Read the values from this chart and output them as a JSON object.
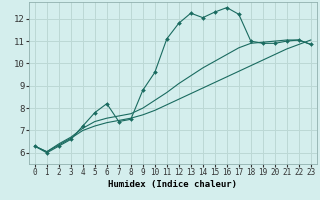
{
  "xlabel": "Humidex (Indice chaleur)",
  "bg_color": "#d4eeed",
  "grid_color": "#bcd8d5",
  "line_color": "#1a6b60",
  "xlim": [
    -0.5,
    23.5
  ],
  "ylim": [
    5.5,
    12.75
  ],
  "xticks": [
    0,
    1,
    2,
    3,
    4,
    5,
    6,
    7,
    8,
    9,
    10,
    11,
    12,
    13,
    14,
    15,
    16,
    17,
    18,
    19,
    20,
    21,
    22,
    23
  ],
  "yticks": [
    6,
    7,
    8,
    9,
    10,
    11,
    12
  ],
  "series1_x": [
    0,
    1,
    2,
    3,
    4,
    5,
    6,
    7,
    8,
    9,
    10,
    11,
    12,
    13,
    14,
    15,
    16,
    17,
    18,
    19,
    20,
    21,
    22,
    23
  ],
  "series1_y": [
    6.3,
    6.0,
    6.3,
    6.6,
    7.2,
    7.8,
    8.2,
    7.4,
    7.5,
    8.8,
    9.6,
    11.1,
    11.8,
    12.25,
    12.05,
    12.3,
    12.5,
    12.2,
    11.0,
    10.9,
    10.9,
    11.0,
    11.05,
    10.85
  ],
  "series2_x": [
    0,
    1,
    2,
    3,
    4,
    5,
    6,
    7,
    8,
    9,
    10,
    11,
    12,
    13,
    14,
    15,
    16,
    17,
    18,
    19,
    20,
    21,
    22,
    23
  ],
  "series2_y": [
    6.3,
    6.05,
    6.35,
    6.65,
    7.0,
    7.2,
    7.35,
    7.45,
    7.55,
    7.7,
    7.9,
    8.15,
    8.4,
    8.65,
    8.9,
    9.15,
    9.4,
    9.65,
    9.9,
    10.15,
    10.4,
    10.65,
    10.85,
    11.05
  ],
  "series3_x": [
    0,
    1,
    2,
    3,
    4,
    5,
    6,
    7,
    8,
    9,
    10,
    11,
    12,
    13,
    14,
    15,
    16,
    17,
    18,
    19,
    20,
    21,
    22,
    23
  ],
  "series3_y": [
    6.3,
    6.05,
    6.4,
    6.7,
    7.1,
    7.4,
    7.55,
    7.65,
    7.75,
    8.0,
    8.35,
    8.7,
    9.1,
    9.45,
    9.8,
    10.1,
    10.4,
    10.7,
    10.9,
    10.95,
    11.0,
    11.05,
    11.05,
    10.85
  ]
}
